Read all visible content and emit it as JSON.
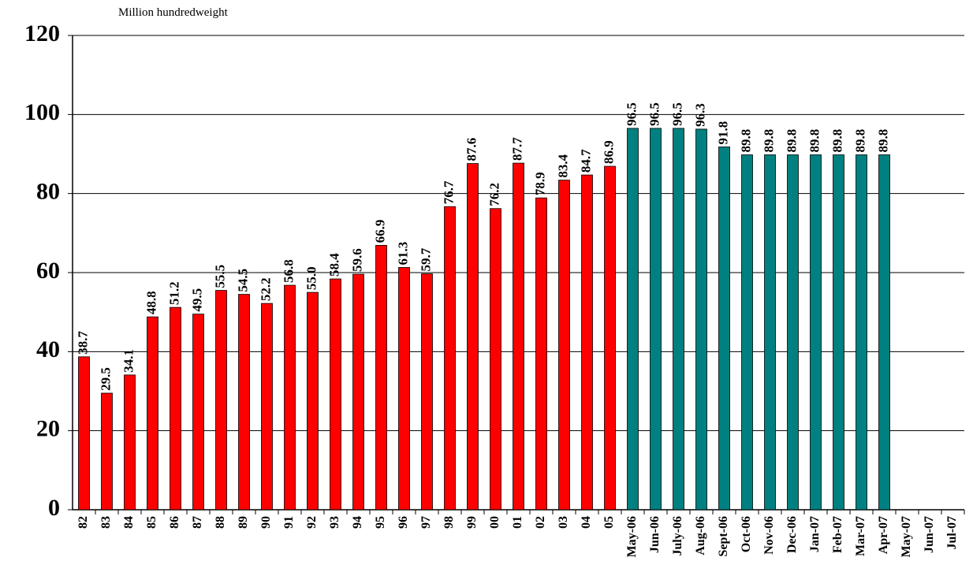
{
  "chart_data": {
    "type": "bar",
    "y_axis_label": "Million hundredweight",
    "categories": [
      "82",
      "83",
      "84",
      "85",
      "86",
      "87",
      "88",
      "89",
      "90",
      "91",
      "92",
      "93",
      "94",
      "95",
      "96",
      "97",
      "98",
      "99",
      "00",
      "01",
      "02",
      "03",
      "04",
      "05",
      "May-06",
      "Jun-06",
      "July-06",
      "Aug-06",
      "Sept-06",
      "Oct-06",
      "Nov-06",
      "Dec-06",
      "Jan-07",
      "Feb-07",
      "Mar-07",
      "Apr-07",
      "May-07",
      "Jun-07",
      "Jul-07"
    ],
    "series": [
      {
        "color": "#ff0000",
        "values": [
          38.7,
          29.5,
          34.1,
          48.8,
          51.2,
          49.5,
          55.5,
          54.5,
          52.2,
          56.8,
          55.0,
          58.4,
          59.6,
          66.9,
          61.3,
          59.7,
          76.7,
          87.6,
          76.2,
          87.7,
          78.9,
          83.4,
          84.7,
          86.9,
          null,
          null,
          null,
          null,
          null,
          null,
          null,
          null,
          null,
          null,
          null,
          null,
          null,
          null,
          null
        ],
        "value_labels": [
          "38.7",
          "29.5",
          "34.1",
          "48.8",
          "51.2",
          "49.5",
          "55.5",
          "54.5",
          "52.2",
          "56.8",
          "55.0",
          "58.4",
          "59.6",
          "66.9",
          "61.3",
          "59.7",
          "76.7",
          "87.6",
          "76.2",
          "87.7",
          "78.9",
          "83.4",
          "84.7",
          "86.9",
          null,
          null,
          null,
          null,
          null,
          null,
          null,
          null,
          null,
          null,
          null,
          null,
          null,
          null,
          null
        ]
      },
      {
        "color": "#008080",
        "values": [
          null,
          null,
          null,
          null,
          null,
          null,
          null,
          null,
          null,
          null,
          null,
          null,
          null,
          null,
          null,
          null,
          null,
          null,
          null,
          null,
          null,
          null,
          null,
          null,
          96.5,
          96.5,
          96.5,
          96.3,
          91.8,
          89.8,
          89.8,
          89.8,
          89.8,
          89.8,
          89.8,
          89.8,
          null,
          null,
          null
        ],
        "value_labels": [
          null,
          null,
          null,
          null,
          null,
          null,
          null,
          null,
          null,
          null,
          null,
          null,
          null,
          null,
          null,
          null,
          null,
          null,
          null,
          null,
          null,
          null,
          null,
          null,
          "96.5",
          "96.5",
          "96.5",
          "96.3",
          "91.8",
          "89.8",
          "89.8",
          "89.8",
          "89.8",
          "89.8",
          "89.8",
          "89.8",
          null,
          null,
          null
        ]
      }
    ],
    "ylim": [
      0,
      120
    ],
    "yticks": [
      0,
      20,
      40,
      60,
      80,
      100,
      120
    ],
    "grid": true
  }
}
